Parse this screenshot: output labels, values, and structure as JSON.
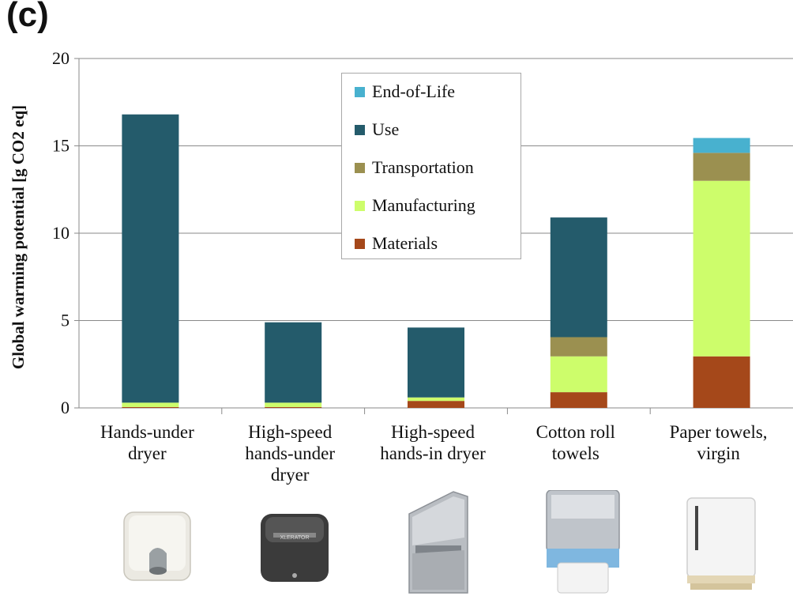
{
  "panel_label": "(c)",
  "chart_data": {
    "type": "bar",
    "stacked": true,
    "categories": [
      [
        "Hands-under",
        "dryer"
      ],
      [
        "High-speed",
        "hands-under",
        "dryer"
      ],
      [
        "High-speed",
        "hands-in dryer"
      ],
      [
        "Cotton roll",
        "towels"
      ],
      [
        "Paper towels,",
        "virgin"
      ]
    ],
    "series": [
      {
        "name": "Materials",
        "color": "#a5481a",
        "values": [
          0.05,
          0.05,
          0.4,
          0.9,
          2.95
        ]
      },
      {
        "name": "Manufacturing",
        "color": "#cdfd6b",
        "values": [
          0.25,
          0.25,
          0.2,
          2.05,
          10.05
        ]
      },
      {
        "name": "Transportation",
        "color": "#9b9050",
        "values": [
          0.0,
          0.0,
          0.0,
          1.1,
          1.6
        ]
      },
      {
        "name": "Use",
        "color": "#245b6b",
        "values": [
          16.5,
          4.6,
          4.0,
          6.85,
          0.0
        ]
      },
      {
        "name": "End-of-Life",
        "color": "#48b1cf",
        "values": [
          0.0,
          0.0,
          0.0,
          0.0,
          0.85
        ]
      }
    ],
    "legend_order": [
      "End-of-Life",
      "Use",
      "Transportation",
      "Manufacturing",
      "Materials"
    ],
    "ylabel": "Global warming potential [g CO2 eq]",
    "ylim": [
      0,
      20
    ],
    "yticks": [
      0,
      5,
      10,
      15,
      20
    ],
    "grid": true,
    "legend_position": "top-center"
  },
  "devices": [
    {
      "icon": "hands-under-dryer-icon",
      "color": "#e8e6df"
    },
    {
      "icon": "high-speed-hands-under-dryer-icon",
      "color": "#3a3a3a",
      "brand": "XLERATOR"
    },
    {
      "icon": "high-speed-hands-in-dryer-icon",
      "color": "#b7bcc2"
    },
    {
      "icon": "cotton-roll-towel-dispenser-icon",
      "color": "#b9bec4"
    },
    {
      "icon": "paper-towel-dispenser-icon",
      "color": "#f2f2f2"
    }
  ]
}
